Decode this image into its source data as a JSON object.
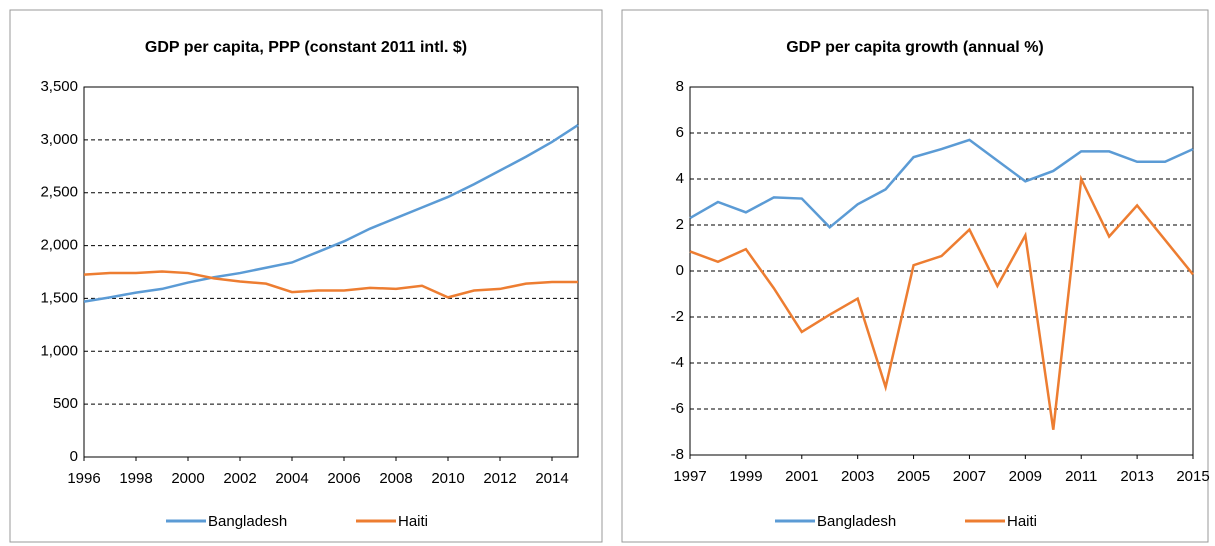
{
  "chart_data": [
    {
      "type": "line",
      "title": "GDP per capita, PPP (constant 2011 intl. $)",
      "x": [
        1996,
        1997,
        1998,
        1999,
        2000,
        2001,
        2002,
        2003,
        2004,
        2005,
        2006,
        2007,
        2008,
        2009,
        2010,
        2011,
        2012,
        2013,
        2014,
        2015
      ],
      "xlim": [
        1996,
        2015
      ],
      "xticks": [
        1996,
        1998,
        2000,
        2002,
        2004,
        2006,
        2008,
        2010,
        2012,
        2014
      ],
      "ylim": [
        0,
        3500
      ],
      "yticks": [
        0,
        500,
        {
          "value": 1000,
          "label": "1,000"
        },
        {
          "value": 1500,
          "label": "1,500"
        },
        {
          "value": 2000,
          "label": "2,000"
        },
        {
          "value": 2500,
          "label": "2,500"
        },
        {
          "value": 3000,
          "label": "3,000"
        },
        {
          "value": 3500,
          "label": "3,500"
        }
      ],
      "grid": true,
      "legend": "bottom",
      "series": [
        {
          "name": "Bangladesh",
          "color": "#5b9bd5",
          "values": [
            1470,
            1510,
            1555,
            1590,
            1650,
            1700,
            1740,
            1790,
            1840,
            1940,
            2040,
            2160,
            2260,
            2360,
            2460,
            2580,
            2710,
            2840,
            2980,
            3140
          ]
        },
        {
          "name": "Haiti",
          "color": "#ed7d31",
          "values": [
            1725,
            1740,
            1740,
            1755,
            1740,
            1690,
            1660,
            1640,
            1560,
            1575,
            1575,
            1600,
            1590,
            1620,
            1510,
            1575,
            1590,
            1640,
            1655,
            1655
          ]
        }
      ]
    },
    {
      "type": "line",
      "title": "GDP per capita growth (annual %)",
      "x": [
        1997,
        1998,
        1999,
        2000,
        2001,
        2002,
        2003,
        2004,
        2005,
        2006,
        2007,
        2008,
        2009,
        2010,
        2011,
        2012,
        2013,
        2014,
        2015
      ],
      "xlim": [
        1997,
        2015
      ],
      "xticks": [
        1997,
        1999,
        2001,
        2003,
        2005,
        2007,
        2009,
        2011,
        2013,
        2015
      ],
      "ylim": [
        -8,
        8
      ],
      "yticks": [
        -8,
        -6,
        -4,
        -2,
        0,
        2,
        4,
        6,
        8
      ],
      "grid": true,
      "legend": "bottom",
      "series": [
        {
          "name": "Bangladesh",
          "color": "#5b9bd5",
          "values": [
            2.3,
            3.0,
            2.55,
            3.2,
            3.15,
            1.9,
            2.9,
            3.55,
            4.95,
            5.3,
            5.7,
            4.8,
            3.9,
            4.35,
            5.2,
            5.2,
            4.75,
            4.75,
            5.3
          ]
        },
        {
          "name": "Haiti",
          "color": "#ed7d31",
          "values": [
            0.85,
            0.4,
            0.95,
            -0.75,
            -2.65,
            -1.9,
            -1.2,
            -5.05,
            0.25,
            0.65,
            1.8,
            -0.65,
            1.55,
            -6.9,
            4.0,
            1.5,
            2.85,
            1.35,
            -0.15
          ]
        }
      ]
    }
  ]
}
